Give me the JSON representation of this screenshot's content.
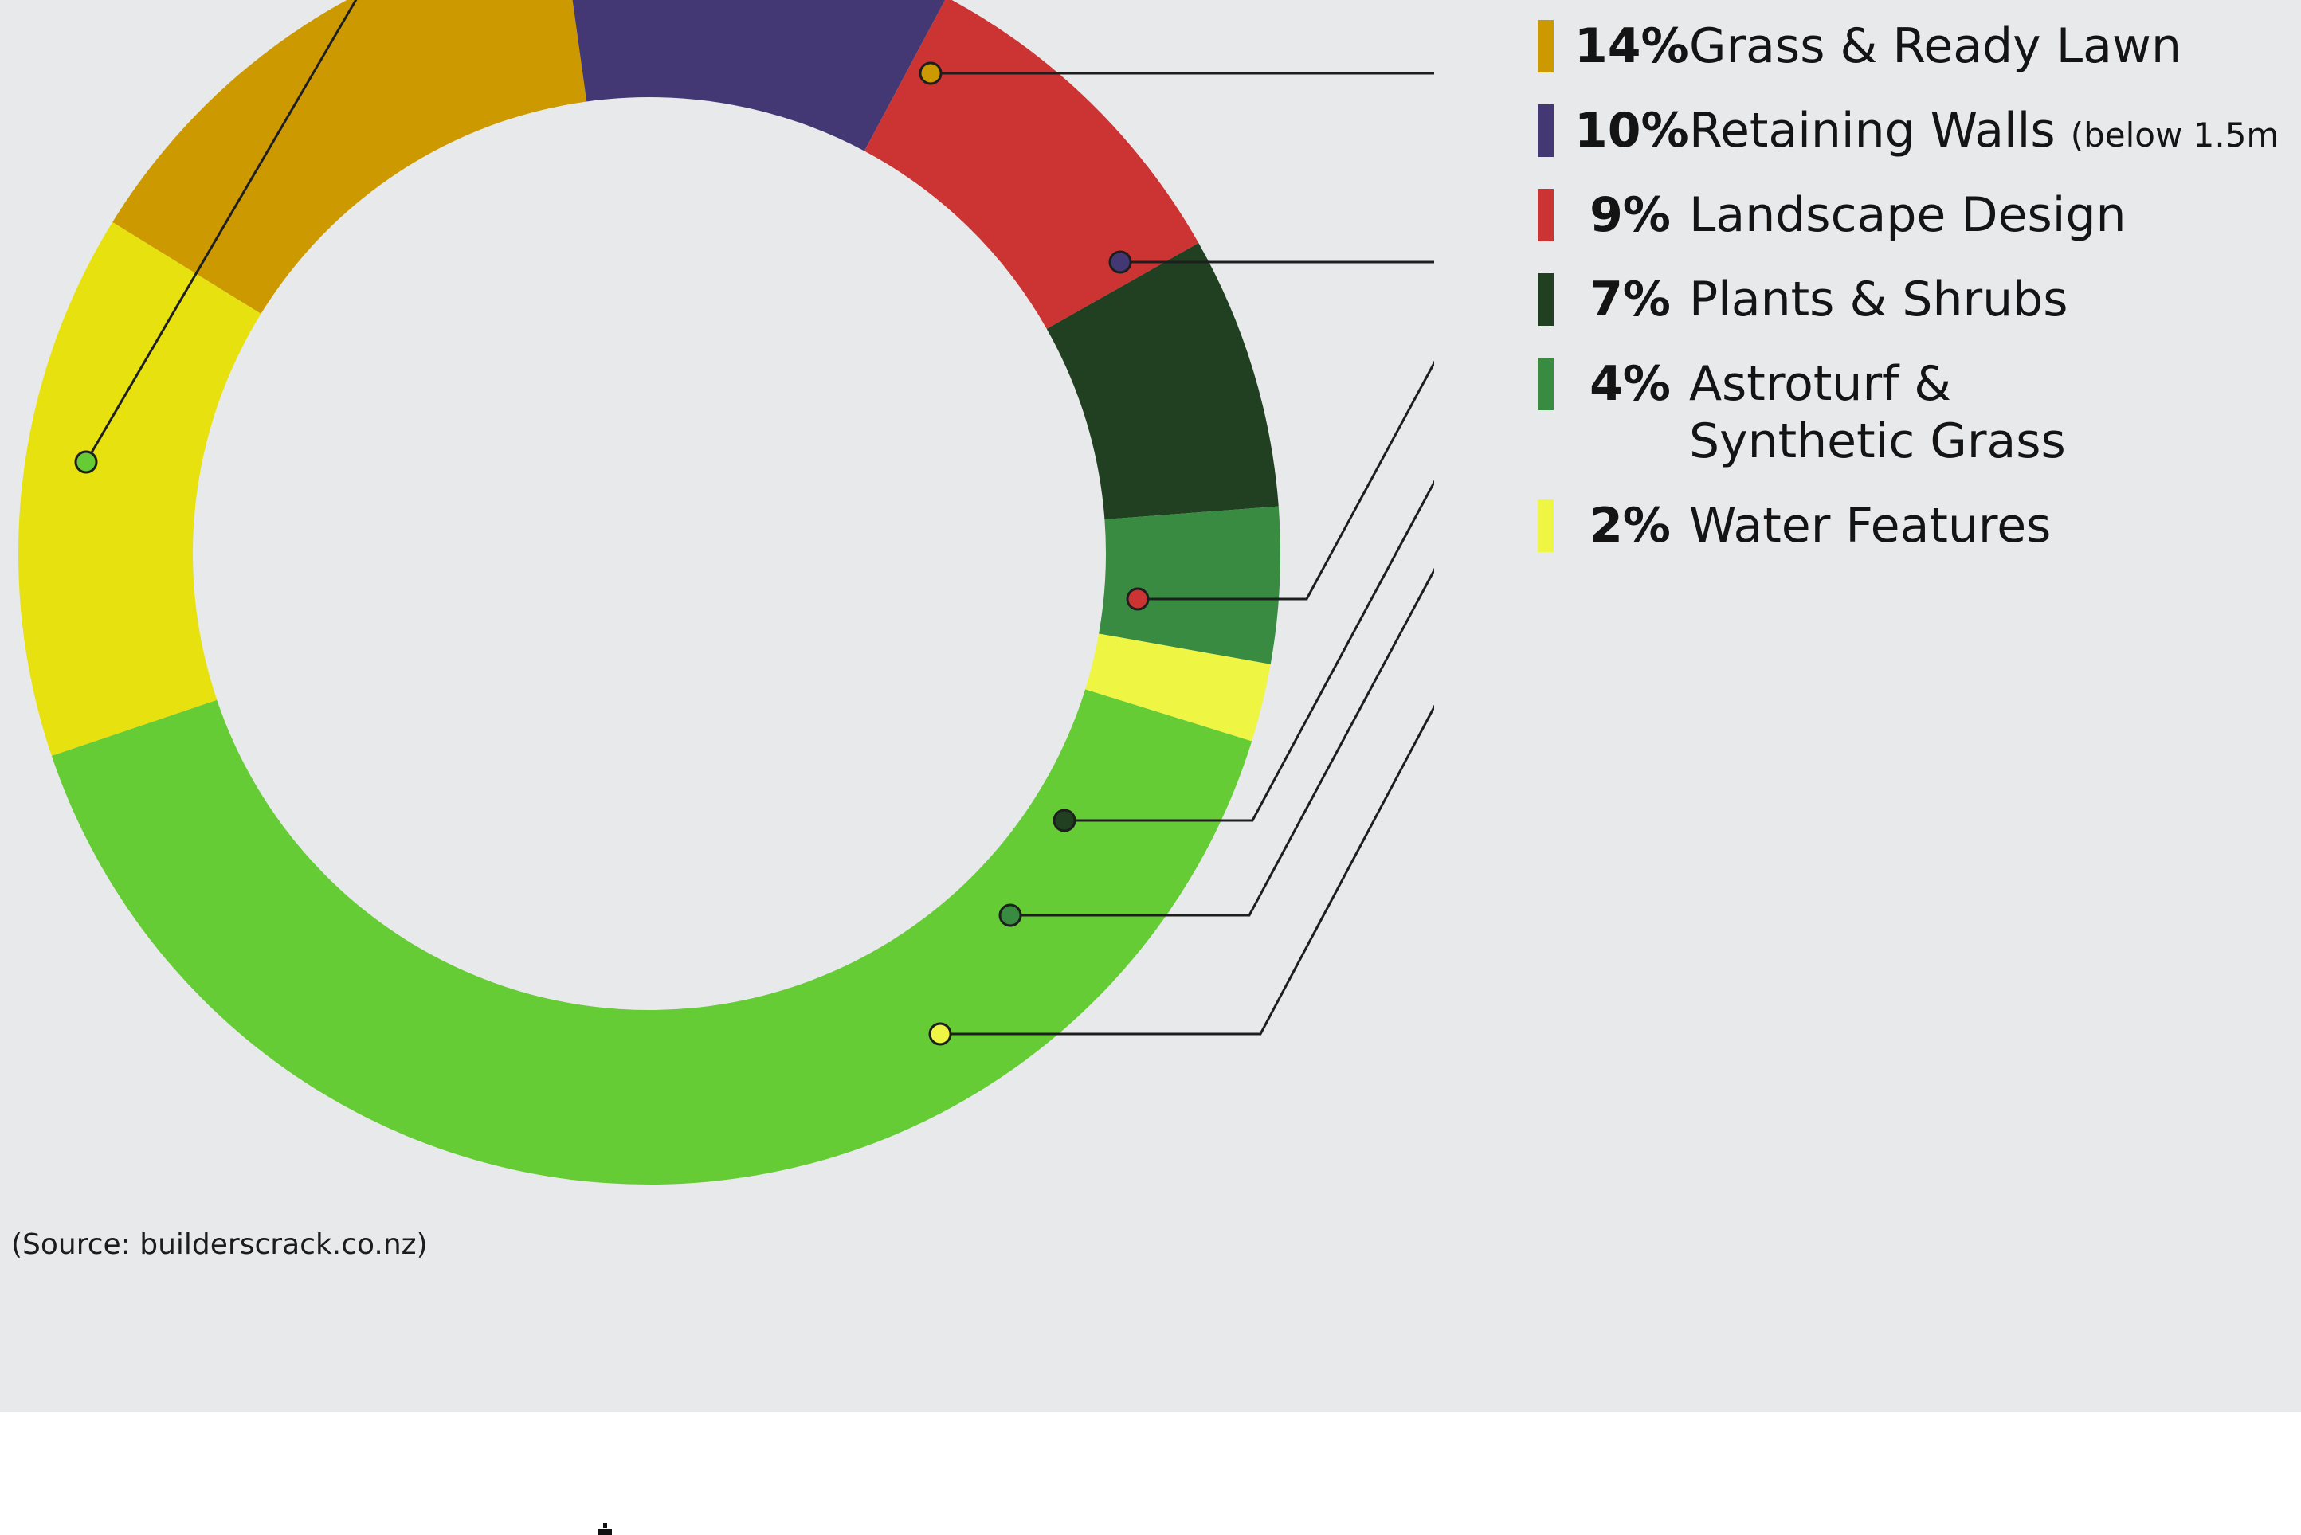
{
  "chart_data": {
    "type": "pie",
    "style": "donut",
    "slices": [
      {
        "label": "Grass & Ready Lawn",
        "percent_label": "14%",
        "value": 14,
        "color": "#cc9a00"
      },
      {
        "label": "Retaining Walls",
        "note": "(below 1.5m",
        "percent_label": "10%",
        "value": 10,
        "color": "#433873"
      },
      {
        "label": "Landscape Design",
        "percent_label": "9%",
        "value": 9,
        "color": "#cc3333"
      },
      {
        "label": "Plants & Shrubs",
        "percent_label": "7%",
        "value": 7,
        "color": "#213f21"
      },
      {
        "label": "Astroturf &\nSynthetic Grass",
        "percent_label": "4%",
        "value": 4,
        "color": "#388b41"
      },
      {
        "label": "Water Features",
        "percent_label": "2%",
        "value": 2,
        "color": "#eef542"
      },
      {
        "label": "",
        "percent_label": "",
        "value": 40,
        "color": "#66cc36"
      },
      {
        "label": "",
        "percent_label": "",
        "value": 14,
        "color": "#e6e10f"
      }
    ],
    "legend_position": "right",
    "source": "(Source: builderscrack.co.nz)"
  },
  "colors": {
    "panel_background": "#e8e9eb",
    "page_background": "#ffffff",
    "leader_line": "#1e1e1e",
    "text": "#141414"
  }
}
